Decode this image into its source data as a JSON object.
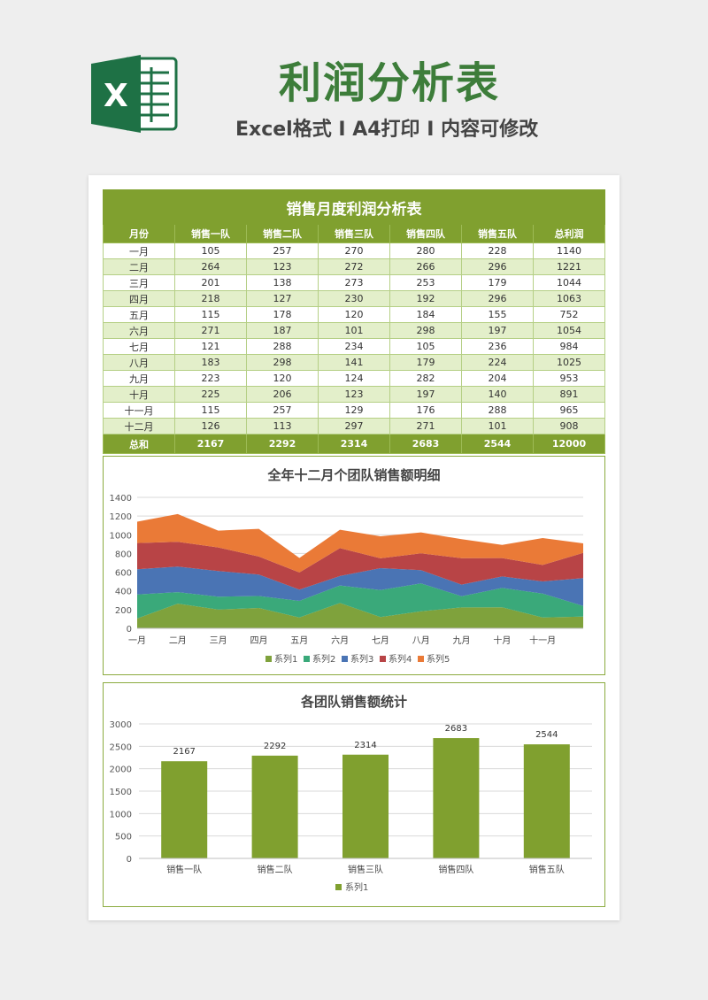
{
  "header": {
    "logo_letter": "X",
    "title": "利润分析表",
    "subtitle": "Excel格式 I A4打印 I 内容可修改"
  },
  "colors": {
    "accent_green": "#80a02f",
    "title_green": "#3d7d3a",
    "row_alt": "#e3efca",
    "series": [
      "#7fa23c",
      "#3aa97a",
      "#4a74b4",
      "#b84446",
      "#ea7a37"
    ]
  },
  "table": {
    "title": "销售月度利润分析表",
    "headers": [
      "月份",
      "销售一队",
      "销售二队",
      "销售三队",
      "销售四队",
      "销售五队",
      "总利润"
    ],
    "rows": [
      [
        "一月",
        "105",
        "257",
        "270",
        "280",
        "228",
        "1140"
      ],
      [
        "二月",
        "264",
        "123",
        "272",
        "266",
        "296",
        "1221"
      ],
      [
        "三月",
        "201",
        "138",
        "273",
        "253",
        "179",
        "1044"
      ],
      [
        "四月",
        "218",
        "127",
        "230",
        "192",
        "296",
        "1063"
      ],
      [
        "五月",
        "115",
        "178",
        "120",
        "184",
        "155",
        "752"
      ],
      [
        "六月",
        "271",
        "187",
        "101",
        "298",
        "197",
        "1054"
      ],
      [
        "七月",
        "121",
        "288",
        "234",
        "105",
        "236",
        "984"
      ],
      [
        "八月",
        "183",
        "298",
        "141",
        "179",
        "224",
        "1025"
      ],
      [
        "九月",
        "223",
        "120",
        "124",
        "282",
        "204",
        "953"
      ],
      [
        "十月",
        "225",
        "206",
        "123",
        "197",
        "140",
        "891"
      ],
      [
        "十一月",
        "115",
        "257",
        "129",
        "176",
        "288",
        "965"
      ],
      [
        "十二月",
        "126",
        "113",
        "297",
        "271",
        "101",
        "908"
      ]
    ],
    "total": [
      "总和",
      "2167",
      "2292",
      "2314",
      "2683",
      "2544",
      "12000"
    ]
  },
  "chart_data": [
    {
      "type": "area",
      "stacked": true,
      "title": "全年十二月个团队销售额明细",
      "categories": [
        "一月",
        "二月",
        "三月",
        "四月",
        "五月",
        "六月",
        "七月",
        "八月",
        "九月",
        "十月",
        "十一月",
        "十二月"
      ],
      "x_tick_labels": [
        "一月",
        "二月",
        "三月",
        "四月",
        "五月",
        "六月",
        "七月",
        "八月",
        "九月",
        "十月",
        "十一月"
      ],
      "series": [
        {
          "name": "系列1",
          "values": [
            105,
            264,
            201,
            218,
            115,
            271,
            121,
            183,
            223,
            225,
            115,
            126
          ]
        },
        {
          "name": "系列2",
          "values": [
            257,
            123,
            138,
            127,
            178,
            187,
            288,
            298,
            120,
            206,
            257,
            113
          ]
        },
        {
          "name": "系列3",
          "values": [
            270,
            272,
            273,
            230,
            120,
            101,
            234,
            141,
            124,
            123,
            129,
            297
          ]
        },
        {
          "name": "系列4",
          "values": [
            280,
            266,
            253,
            192,
            184,
            298,
            105,
            179,
            282,
            197,
            176,
            271
          ]
        },
        {
          "name": "系列5",
          "values": [
            228,
            296,
            179,
            296,
            155,
            197,
            236,
            224,
            204,
            140,
            288,
            101
          ]
        }
      ],
      "ylim": [
        0,
        1400
      ],
      "y_ticks": [
        0,
        200,
        400,
        600,
        800,
        1000,
        1200,
        1400
      ],
      "grid": true,
      "legend": "bottom"
    },
    {
      "type": "bar",
      "title": "各团队销售额统计",
      "categories": [
        "销售一队",
        "销售二队",
        "销售三队",
        "销售四队",
        "销售五队"
      ],
      "series": [
        {
          "name": "系列1",
          "values": [
            2167,
            2292,
            2314,
            2683,
            2544
          ]
        }
      ],
      "ylim": [
        0,
        3000
      ],
      "y_ticks": [
        0,
        500,
        1000,
        1500,
        2000,
        2500,
        3000
      ],
      "data_labels": true,
      "grid": true,
      "legend": "bottom"
    }
  ]
}
